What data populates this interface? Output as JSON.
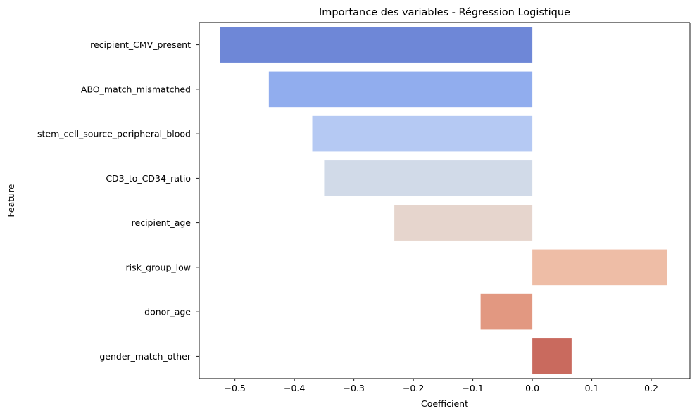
{
  "chart_data": {
    "type": "bar",
    "orientation": "horizontal",
    "title": "Importance des variables - Régression Logistique",
    "xlabel": "Coefficient",
    "ylabel": "Feature",
    "xlim": [
      -0.56,
      0.265
    ],
    "xticks": [
      -0.5,
      -0.4,
      -0.3,
      -0.2,
      -0.1,
      0.0,
      0.1,
      0.2
    ],
    "xtick_labels": [
      "−0.5",
      "−0.4",
      "−0.3",
      "−0.2",
      "−0.1",
      "0.0",
      "0.1",
      "0.2"
    ],
    "grid": false,
    "categories": [
      "recipient_CMV_present",
      "ABO_match_mismatched",
      "stem_cell_source_peripheral_blood",
      "CD3_to_CD34_ratio",
      "recipient_age",
      "risk_group_low",
      "donor_age",
      "gender_match_other"
    ],
    "values": [
      -0.525,
      -0.443,
      -0.37,
      -0.35,
      -0.232,
      0.227,
      -0.087,
      0.066
    ],
    "colors": [
      "#6e87d7",
      "#91adee",
      "#b5c9f3",
      "#d1dae8",
      "#e6d5cd",
      "#eebda6",
      "#e29881",
      "#c96a5e"
    ]
  }
}
